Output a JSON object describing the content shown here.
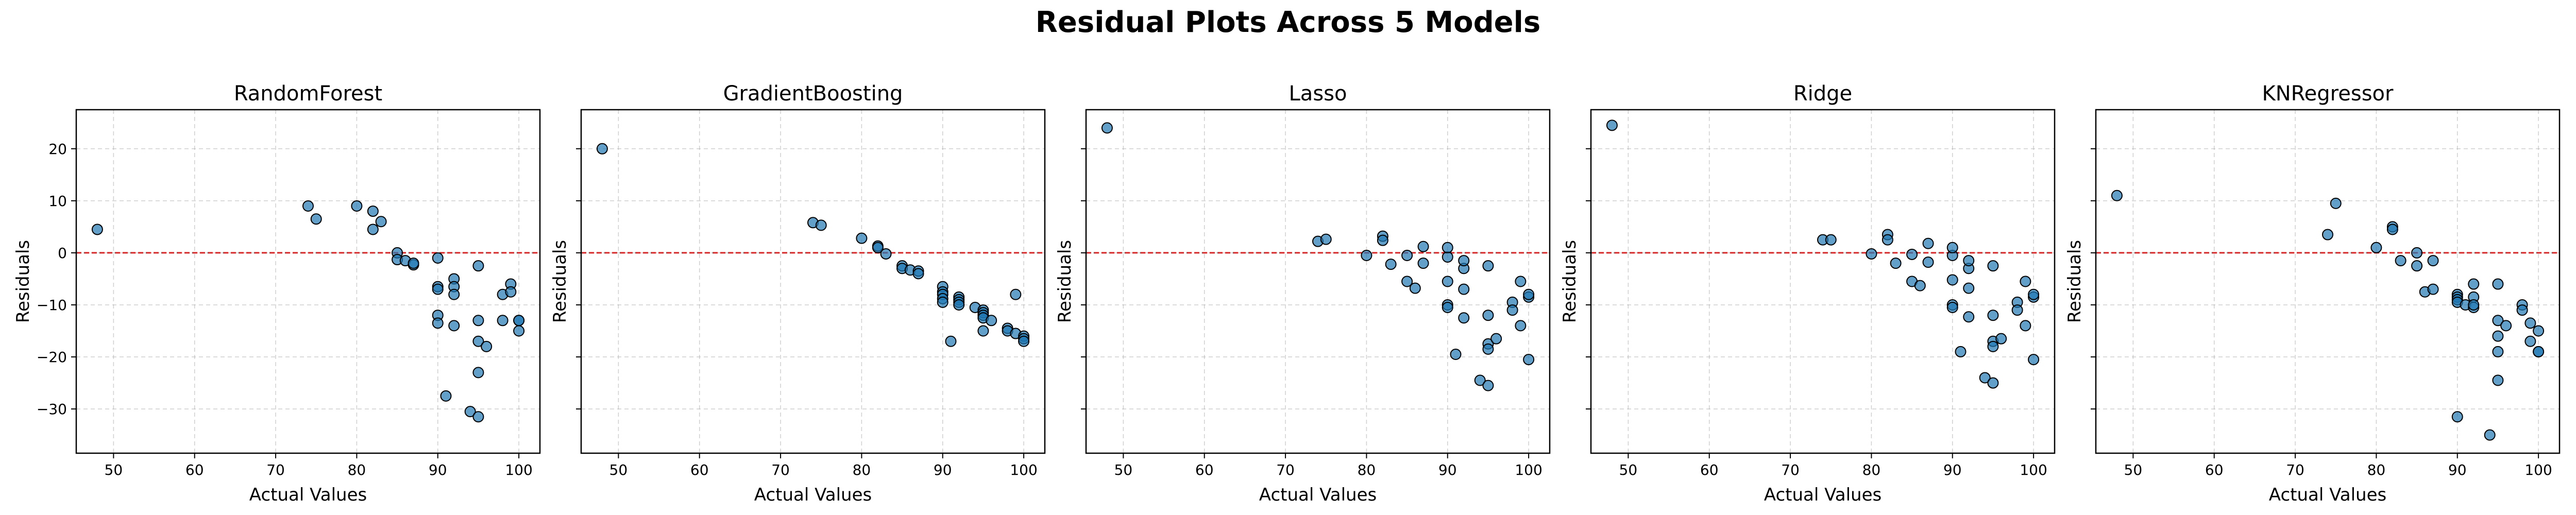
{
  "figure": {
    "title": "Residual Plots Across 5 Models"
  },
  "style": {
    "point_fill": "#1f77b4",
    "point_edge": "#000000",
    "zero_line": "#d62728",
    "grid": "#b0b0b0"
  },
  "chart_data": [
    {
      "type": "scatter",
      "title": "RandomForest",
      "xlabel": "Actual Values",
      "ylabel": "Residuals",
      "xlim": [
        45.4,
        102.6
      ],
      "ylim": [
        -38.5,
        27.5
      ],
      "xticks": [
        "50",
        "60",
        "70",
        "80",
        "90",
        "100"
      ],
      "yticks": [
        "20",
        "10",
        "0",
        "−10",
        "−20",
        "−30"
      ],
      "grid": true,
      "reference_line": 0,
      "x": [
        48,
        74,
        75,
        80,
        82,
        82,
        83,
        85,
        85,
        86,
        87,
        87,
        90,
        90,
        90,
        90,
        90,
        91,
        92,
        92,
        92,
        92,
        94,
        95,
        95,
        95,
        95,
        95,
        96,
        98,
        98,
        99,
        99,
        100,
        100,
        100
      ],
      "y": [
        4.5,
        9,
        6.5,
        9,
        8,
        4.5,
        6,
        0,
        -1.3,
        -1.5,
        -2.3,
        -2,
        -1,
        -6.5,
        -7,
        -12,
        -13.5,
        -27.5,
        -5,
        -6.5,
        -8,
        -14,
        -30.5,
        -2.5,
        -13,
        -17,
        -23,
        -31.5,
        -18,
        -8,
        -13,
        -6,
        -7.5,
        -13,
        -15,
        -13
      ]
    },
    {
      "type": "scatter",
      "title": "GradientBoosting",
      "xlabel": "Actual Values",
      "ylabel": "Residuals",
      "xlim": [
        45.4,
        102.6
      ],
      "ylim": [
        -38.5,
        27.5
      ],
      "xticks": [
        "50",
        "60",
        "70",
        "80",
        "90",
        "100"
      ],
      "yticks": [],
      "grid": true,
      "reference_line": 0,
      "x": [
        48,
        74,
        75,
        80,
        82,
        82,
        83,
        85,
        85,
        86,
        87,
        87,
        90,
        90,
        90,
        90,
        90,
        91,
        92,
        92,
        92,
        92,
        94,
        95,
        95,
        95,
        95,
        95,
        96,
        98,
        98,
        99,
        99,
        100,
        100,
        100
      ],
      "y": [
        20,
        5.8,
        5.3,
        2.8,
        1.3,
        1.0,
        -0.2,
        -2.5,
        -3.0,
        -3.3,
        -3.5,
        -4.0,
        -6.5,
        -7.5,
        -8.0,
        -8.8,
        -9.5,
        -17.0,
        -8.5,
        -9.0,
        -9.5,
        -10.0,
        -10.5,
        -11.0,
        -11.5,
        -12.0,
        -12.5,
        -15.0,
        -13.0,
        -14.5,
        -15.0,
        -8.0,
        -15.5,
        -16.0,
        -16.5,
        -17.0
      ]
    },
    {
      "type": "scatter",
      "title": "Lasso",
      "xlabel": "Actual Values",
      "ylabel": "Residuals",
      "xlim": [
        45.4,
        102.6
      ],
      "ylim": [
        -38.5,
        27.5
      ],
      "xticks": [
        "50",
        "60",
        "70",
        "80",
        "90",
        "100"
      ],
      "yticks": [],
      "grid": true,
      "reference_line": 0,
      "x": [
        48,
        74,
        75,
        80,
        82,
        82,
        83,
        85,
        85,
        86,
        87,
        87,
        90,
        90,
        90,
        90,
        90,
        91,
        92,
        92,
        92,
        92,
        94,
        95,
        95,
        95,
        95,
        95,
        96,
        98,
        98,
        99,
        99,
        100,
        100,
        100
      ],
      "y": [
        24,
        2.2,
        2.6,
        -0.5,
        3.2,
        2.4,
        -2.2,
        -0.5,
        -5.5,
        -6.8,
        1.2,
        -2.0,
        -0.8,
        -5.5,
        -10.0,
        -10.5,
        1.0,
        -19.5,
        -3.0,
        -7.0,
        -12.5,
        -1.5,
        -24.5,
        -2.5,
        -12.0,
        -17.5,
        -18.5,
        -25.5,
        -16.5,
        -9.5,
        -11.0,
        -5.5,
        -14.0,
        -8.5,
        -20.5,
        -8.0
      ]
    },
    {
      "type": "scatter",
      "title": "Ridge",
      "xlabel": "Actual Values",
      "ylabel": "Residuals",
      "xlim": [
        45.4,
        102.6
      ],
      "ylim": [
        -38.5,
        27.5
      ],
      "xticks": [
        "50",
        "60",
        "70",
        "80",
        "90",
        "100"
      ],
      "yticks": [],
      "grid": true,
      "reference_line": 0,
      "x": [
        48,
        74,
        75,
        80,
        82,
        82,
        83,
        85,
        85,
        86,
        87,
        87,
        90,
        90,
        90,
        90,
        90,
        91,
        92,
        92,
        92,
        92,
        94,
        95,
        95,
        95,
        95,
        95,
        96,
        98,
        98,
        99,
        99,
        100,
        100,
        100
      ],
      "y": [
        24.5,
        2.5,
        2.5,
        -0.2,
        3.5,
        2.5,
        -2.0,
        -0.3,
        -5.5,
        -6.3,
        1.8,
        -1.8,
        -0.5,
        -5.2,
        -10.0,
        -10.5,
        1.0,
        -19.0,
        -3.0,
        -6.8,
        -12.3,
        -1.5,
        -24.0,
        -2.5,
        -12.0,
        -17.0,
        -18.0,
        -25.0,
        -16.5,
        -9.5,
        -11.0,
        -5.5,
        -14.0,
        -8.5,
        -20.5,
        -8.0
      ]
    },
    {
      "type": "scatter",
      "title": "KNRegressor",
      "xlabel": "Actual Values",
      "ylabel": "Residuals",
      "xlim": [
        45.4,
        102.6
      ],
      "ylim": [
        -38.5,
        27.5
      ],
      "xticks": [
        "50",
        "60",
        "70",
        "80",
        "90",
        "100"
      ],
      "yticks": [],
      "grid": true,
      "reference_line": 0,
      "x": [
        48,
        74,
        75,
        80,
        82,
        82,
        83,
        85,
        85,
        86,
        87,
        87,
        90,
        90,
        90,
        90,
        90,
        91,
        92,
        92,
        92,
        92,
        94,
        95,
        95,
        95,
        95,
        95,
        96,
        98,
        98,
        99,
        99,
        100,
        100,
        100
      ],
      "y": [
        11,
        3.5,
        9.5,
        1.0,
        5.0,
        4.5,
        -1.5,
        0.0,
        -2.5,
        -7.5,
        -1.5,
        -7.0,
        -8.0,
        -8.5,
        -9.0,
        -9.5,
        -31.5,
        -10.0,
        -6.0,
        -8.5,
        -10.5,
        -10.0,
        -35.0,
        -6.0,
        -13.0,
        -16.0,
        -19.0,
        -24.5,
        -14.0,
        -10.0,
        -11.0,
        -13.5,
        -17.0,
        -15.0,
        -19.0,
        -19.0
      ]
    }
  ]
}
